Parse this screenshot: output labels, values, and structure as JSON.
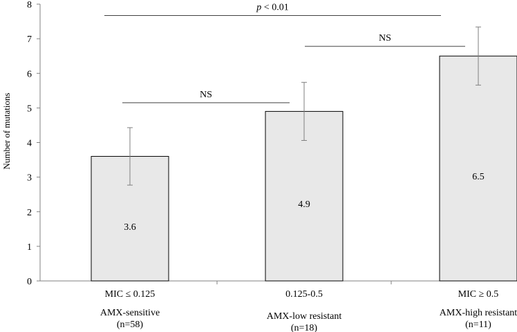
{
  "chart_data": {
    "type": "bar",
    "title": "",
    "xlabel": "",
    "ylabel": "Number of mutations",
    "ylim": [
      0,
      8
    ],
    "yticks": [
      0,
      1,
      2,
      3,
      4,
      5,
      6,
      7,
      8
    ],
    "grid": false,
    "legend": "none",
    "categories": [
      {
        "threshold": "MIC ≤ 0.125",
        "group": "AMX-sensitive",
        "n": "(n=58)"
      },
      {
        "threshold": "0.125-0.5",
        "group": "AMX-low resistant",
        "n": "(n=18)"
      },
      {
        "threshold": "MIC ≥ 0.5",
        "group": "AMX-high resistant",
        "n": "(n=11)"
      }
    ],
    "values": [
      3.6,
      4.9,
      6.5
    ],
    "data_labels": [
      "3.6",
      "4.9",
      "6.5"
    ],
    "error_bars": [
      {
        "low": 2.77,
        "high": 4.43
      },
      {
        "low": 4.06,
        "high": 5.74
      },
      {
        "low": 5.66,
        "high": 7.34
      }
    ],
    "significance": [
      {
        "from": 0,
        "to": 1,
        "label": "NS",
        "level": 5.15,
        "italic_prefix": ""
      },
      {
        "from": 1,
        "to": 2,
        "label": "NS",
        "level": 6.78,
        "italic_prefix": ""
      },
      {
        "from": 0,
        "to": 2,
        "label": " < 0.01",
        "level": 7.67,
        "italic_prefix": "p"
      }
    ],
    "colors": {
      "bar_fill": "#e8e8e8",
      "bar_stroke": "#000000",
      "axis": "#808080",
      "error_bar": "#7f7f7f",
      "sig_line": "#404040"
    }
  }
}
